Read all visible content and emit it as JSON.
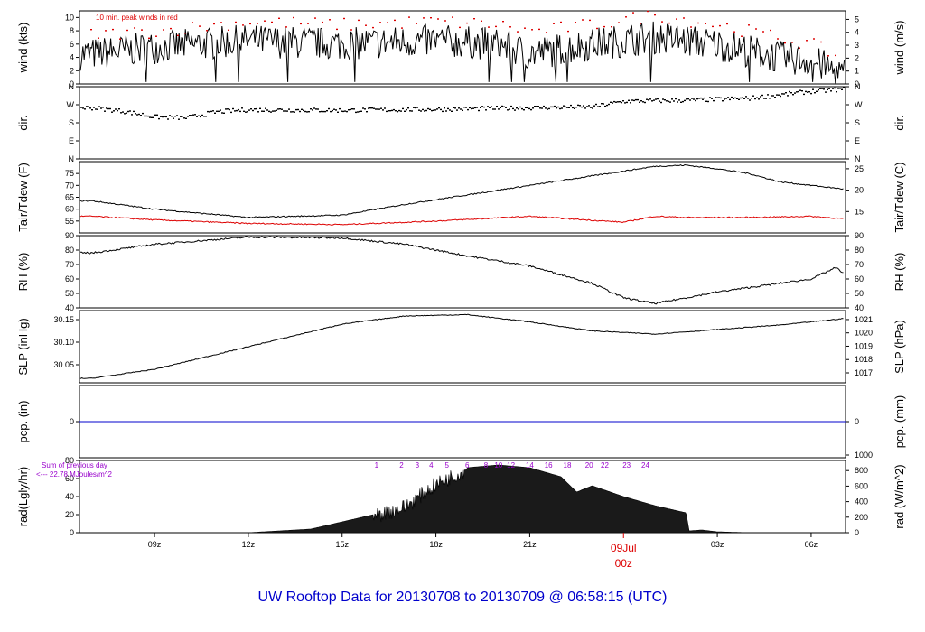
{
  "title": "UW Rooftop Data for 20130708  to  20130709 @ 06:58:15  (UTC)",
  "colors": {
    "title": "#0000cc",
    "red": "#dd0000",
    "blue": "#0000cc",
    "purple": "#9900cc",
    "line": "#000000"
  },
  "x_axis": {
    "ticks": [
      {
        "label": "09z",
        "hour": 9
      },
      {
        "label": "12z",
        "hour": 12
      },
      {
        "label": "15z",
        "hour": 15
      },
      {
        "label": "18z",
        "hour": 18
      },
      {
        "label": "21z",
        "hour": 21
      },
      {
        "label": "03z",
        "hour": 27
      },
      {
        "label": "06z",
        "hour": 30
      }
    ],
    "day_marker": {
      "date": "09Jul",
      "time": "00z",
      "hour": 24
    }
  },
  "chart_data": [
    {
      "type": "line",
      "panel": "wind",
      "ylabel_left": "wind (kts)",
      "ylabel_right": "wind (m/s)",
      "annotation": "10 min. peak winds in red",
      "ylim": [
        0,
        11
      ],
      "yticks_left": [
        "0",
        "2",
        "4",
        "6",
        "8",
        "10"
      ],
      "yticks_right": [
        "0",
        "1",
        "2",
        "3",
        "4",
        "5"
      ],
      "series": [
        {
          "x": [
            7,
            9,
            12,
            15,
            18,
            20,
            21,
            23,
            25,
            27,
            29,
            30,
            31
          ],
          "values": [
            4.5,
            5.5,
            6.5,
            6,
            6.5,
            6,
            4.5,
            6,
            7,
            6,
            4,
            3.5,
            1.5
          ]
        },
        {
          "x": [
            7,
            9,
            12,
            15,
            18,
            20,
            21,
            23,
            25,
            27,
            29,
            30,
            31
          ],
          "values": [
            7.5,
            8,
            9.5,
            9,
            9.5,
            9,
            8,
            9,
            10.5,
            9,
            7,
            6,
            4
          ]
        }
      ]
    },
    {
      "type": "scatter",
      "panel": "dir",
      "ylabel_left": "dir.",
      "ylabel_right": "dir.",
      "yticks_left": [
        "N",
        "E",
        "S",
        "W",
        "N"
      ],
      "yticks_right": [
        "N",
        "E",
        "S",
        "W",
        "N"
      ],
      "ylim": [
        0,
        360
      ],
      "series": [
        {
          "x": [
            7,
            8,
            9,
            10,
            11,
            12,
            15,
            18,
            21,
            23,
            24,
            26,
            28,
            30,
            31
          ],
          "values": [
            258,
            240,
            212,
            208,
            238,
            248,
            245,
            250,
            258,
            262,
            290,
            295,
            305,
            340,
            350
          ]
        }
      ]
    },
    {
      "type": "line",
      "panel": "temp",
      "ylabel_left": "Tair/Tdew (F)",
      "ylabel_right": "Tair/Tdew (C)",
      "ylim": [
        50,
        80
      ],
      "yticks_left": [
        "55",
        "60",
        "65",
        "70",
        "75"
      ],
      "yticks_right": [
        "15",
        "20",
        "25"
      ],
      "series": [
        {
          "x": [
            7,
            9,
            12,
            15,
            17,
            19,
            21,
            23,
            25,
            26,
            27,
            28,
            29,
            31
          ],
          "values": [
            63.5,
            60,
            56.5,
            57.5,
            62,
            66,
            70,
            74,
            78,
            78.5,
            77,
            75,
            71.5,
            68.5
          ]
        },
        {
          "x": [
            7,
            9,
            12,
            15,
            18,
            21,
            24,
            25,
            26,
            28,
            30,
            31
          ],
          "values": [
            57,
            55.5,
            54,
            53.5,
            55,
            57,
            54.5,
            57,
            56.5,
            56.5,
            57,
            56
          ]
        }
      ]
    },
    {
      "type": "line",
      "panel": "rh",
      "ylabel_left": "RH (%)",
      "ylabel_right": "RH (%)",
      "ylim": [
        40,
        90
      ],
      "yticks_left": [
        "40",
        "50",
        "60",
        "70",
        "80",
        "90"
      ],
      "yticks_right": [
        "40",
        "50",
        "60",
        "70",
        "80",
        "90"
      ],
      "series": [
        {
          "x": [
            7,
            9,
            12,
            15,
            17,
            19,
            21,
            23,
            24,
            25,
            27,
            29,
            30,
            30.8,
            31
          ],
          "values": [
            78,
            84,
            89,
            88.5,
            84,
            76,
            69,
            57,
            47,
            43,
            51,
            57,
            60,
            68,
            64
          ]
        }
      ]
    },
    {
      "type": "line",
      "panel": "slp",
      "ylabel_left": "SLP (inHg)",
      "ylabel_right": "SLP (hPa)",
      "ylim": [
        30.01,
        30.17
      ],
      "yticks_left": [
        "30.05",
        "30.10",
        "30.15"
      ],
      "yticks_right": [
        "1017",
        "1018",
        "1019",
        "1020",
        "1021"
      ],
      "series": [
        {
          "x": [
            7,
            9,
            12,
            15,
            17,
            19,
            21,
            23,
            25,
            27,
            29,
            31
          ],
          "values": [
            30.02,
            30.04,
            30.09,
            30.14,
            30.158,
            30.161,
            30.145,
            30.125,
            30.118,
            30.128,
            30.138,
            30.152
          ]
        }
      ]
    },
    {
      "type": "line",
      "panel": "pcp",
      "ylabel_left": "pcp. (in)",
      "ylabel_right": "pcp. (mm)",
      "ylim": [
        -1,
        1
      ],
      "yticks_left": [
        "0"
      ],
      "yticks_right": [
        "0"
      ],
      "series": [
        {
          "x": [
            7,
            31
          ],
          "values": [
            0,
            0
          ]
        }
      ]
    },
    {
      "type": "area",
      "panel": "rad",
      "ylabel_left": "rad(Lgly/hr)",
      "ylabel_right": "rad (W/m^2)",
      "annotation_1": "Sum of previous day",
      "annotation_2": "<--- 22.78 MJoules/m^2",
      "ylim": [
        0,
        80
      ],
      "yticks_left": [
        "0",
        "20",
        "40",
        "60",
        "80"
      ],
      "yticks_right": [
        "0",
        "200",
        "400",
        "600",
        "800",
        "1000"
      ],
      "hour_labels": [
        "1",
        "2",
        "3",
        "4",
        "5",
        "6",
        "8",
        "10",
        "12",
        "14",
        "16",
        "18",
        "20",
        "22",
        "23",
        "24"
      ],
      "series": [
        {
          "x": [
            12,
            13,
            14,
            15,
            16,
            17,
            18,
            19,
            20,
            21,
            22,
            22.5,
            23,
            24,
            25,
            26,
            26.1,
            26.5,
            27,
            28
          ],
          "values": [
            0,
            2,
            4,
            12,
            20,
            30,
            55,
            72,
            75,
            72,
            62,
            45,
            52,
            40,
            30,
            22,
            2,
            3,
            1,
            0
          ]
        }
      ]
    }
  ]
}
